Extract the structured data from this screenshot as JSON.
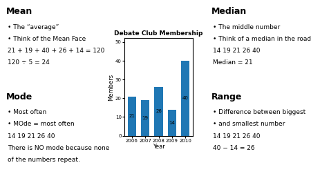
{
  "chart_data": {
    "type": "bar",
    "title": "Debate Club Membership",
    "categories": [
      "2006",
      "2007",
      "2008",
      "2009",
      "2010"
    ],
    "values": [
      21,
      19,
      26,
      14,
      40
    ],
    "x_label": "Year",
    "y_label": "Members",
    "ylim": [
      0,
      52
    ],
    "yticks": [
      0,
      10,
      20,
      30,
      40,
      50
    ],
    "data_labels": true,
    "annotations": [
      [
        "Mean",
        "• The “average”",
        "• Think of the Mean Face",
        "21 + 19 + 40 + 26 + 14 = 120",
        "120 ÷ 5 = 24"
      ],
      [
        "Median",
        "• The middle number",
        "• Think of a median in the road",
        "14 19 21 26 40",
        "Median = 21"
      ],
      [
        "Mode",
        "• Most often",
        "• MOde = most often",
        "14 19 21 26 40",
        "There is NO mode because none",
        "of the numbers repeat."
      ],
      [
        "Range",
        "• Difference between biggest",
        "• and smallest number",
        "14 19 21 26 40",
        "40 − 14 = 26"
      ]
    ]
  }
}
